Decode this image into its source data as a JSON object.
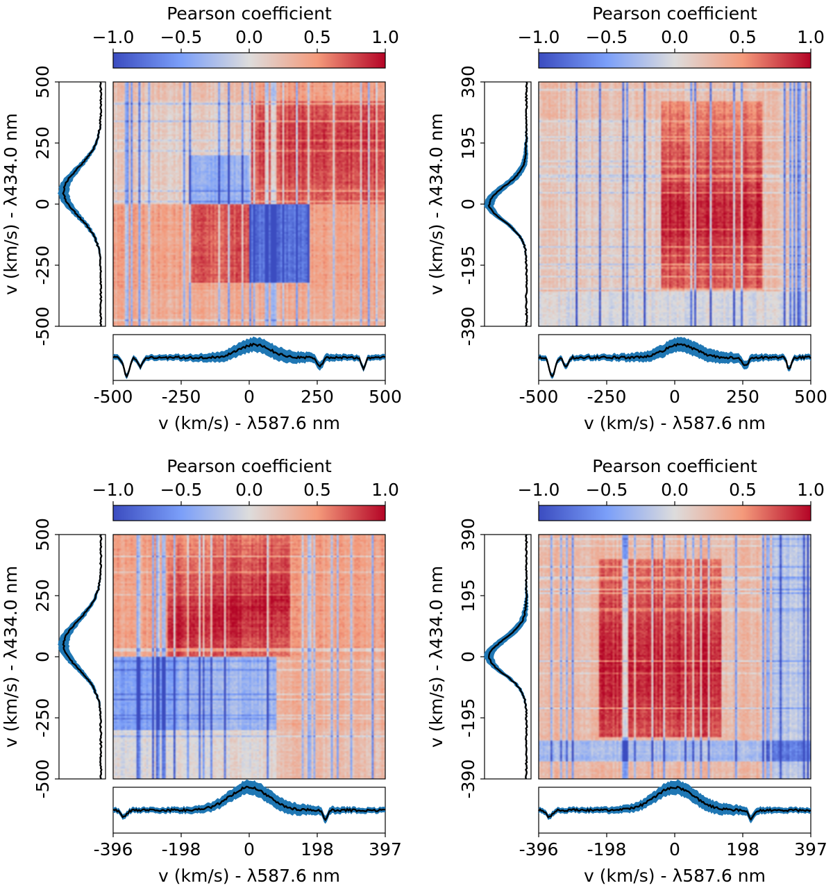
{
  "figure_type": "pearson-correlation-grid",
  "chart_data": [
    {
      "type": "heatmap",
      "panel": "top-left",
      "colorbar": {
        "title": "Pearson coefficient",
        "ticks": [
          "−1.0",
          "−0.5",
          "0.0",
          "0.5",
          "1.0"
        ],
        "range": [
          -1.0,
          1.0
        ],
        "colormap": "coolwarm"
      },
      "ylabel": "v (km/s) - λ434.0 nm",
      "xlabel": "v (km/s) - λ587.6 nm",
      "yticks": [
        "500",
        "250",
        "0",
        "-250",
        "-500"
      ],
      "xticks": [
        "-500",
        "-250",
        "0",
        "250",
        "500"
      ],
      "xlim": [
        -500,
        500
      ],
      "ylim": [
        -500,
        500
      ],
      "side_profile": "emission",
      "bottom_profile": "absorption"
    },
    {
      "type": "heatmap",
      "panel": "top-right",
      "colorbar": {
        "title": "Pearson coefficient",
        "ticks": [
          "−1.0",
          "−0.5",
          "0.0",
          "0.5",
          "1.0"
        ],
        "range": [
          -1.0,
          1.0
        ],
        "colormap": "coolwarm"
      },
      "ylabel": "v (km/s) - λ434.0 nm",
      "xlabel": "v (km/s) - λ587.6 nm",
      "yticks": [
        "390",
        "195",
        "0",
        "-195",
        "-390"
      ],
      "xticks": [
        "-500",
        "-250",
        "0",
        "250",
        "500"
      ],
      "xlim": [
        -500,
        500
      ],
      "ylim": [
        -390,
        390
      ],
      "side_profile": "narrow",
      "bottom_profile": "absorption"
    },
    {
      "type": "heatmap",
      "panel": "bottom-left",
      "colorbar": {
        "title": "Pearson coefficient",
        "ticks": [
          "−1.0",
          "−0.5",
          "0.0",
          "0.5",
          "1.0"
        ],
        "range": [
          -1.0,
          1.0
        ],
        "colormap": "coolwarm"
      },
      "ylabel": "v (km/s) - λ434.0 nm",
      "xlabel": "v (km/s) - λ587.6 nm",
      "yticks": [
        "500",
        "250",
        "0",
        "-250",
        "-500"
      ],
      "xticks": [
        "-396",
        "-198",
        "0",
        "198",
        "397"
      ],
      "xlim": [
        -396,
        397
      ],
      "ylim": [
        -500,
        500
      ],
      "side_profile": "emission",
      "bottom_profile": "emission"
    },
    {
      "type": "heatmap",
      "panel": "bottom-right",
      "colorbar": {
        "title": "Pearson coefficient",
        "ticks": [
          "−1.0",
          "−0.5",
          "0.0",
          "0.5",
          "1.0"
        ],
        "range": [
          -1.0,
          1.0
        ],
        "colormap": "coolwarm"
      },
      "ylabel": "v (km/s) - λ434.0 nm",
      "xlabel": "v (km/s) - λ587.6 nm",
      "yticks": [
        "390",
        "195",
        "0",
        "-195",
        "-390"
      ],
      "xticks": [
        "-396",
        "-198",
        "0",
        "198",
        "397"
      ],
      "xlim": [
        -396,
        397
      ],
      "ylim": [
        -390,
        390
      ],
      "side_profile": "narrow",
      "bottom_profile": "emission"
    }
  ]
}
